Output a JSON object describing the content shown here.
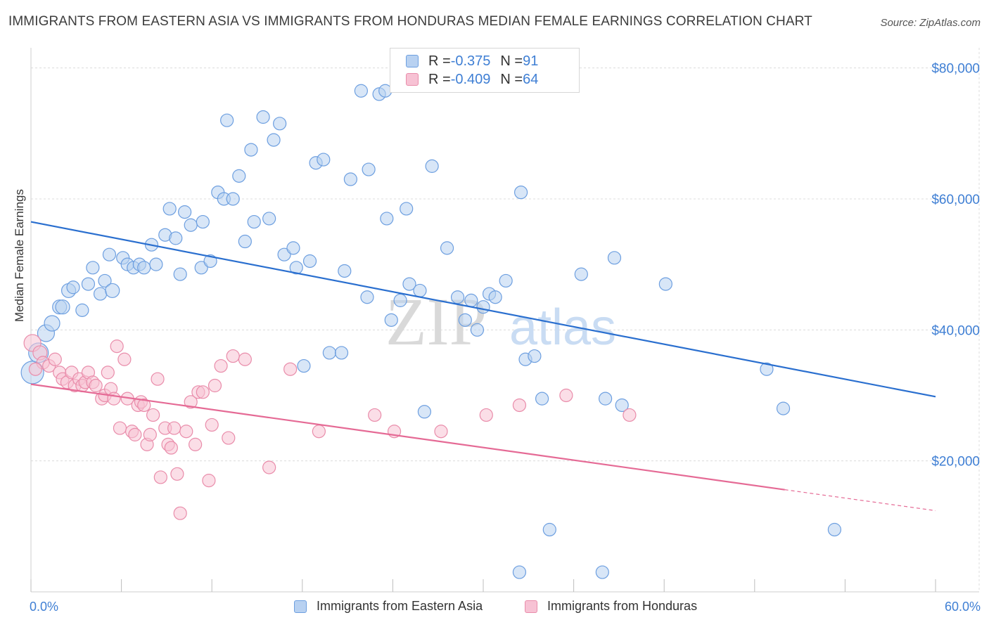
{
  "header": {
    "title": "IMMIGRANTS FROM EASTERN ASIA VS IMMIGRANTS FROM HONDURAS MEDIAN FEMALE EARNINGS CORRELATION CHART",
    "source": "Source: ZipAtlas.com"
  },
  "watermark": {
    "zip": "ZIP",
    "atlas": "atlas"
  },
  "legend_top": {
    "rows": [
      {
        "r_label": "R = ",
        "r_value": "-0.375",
        "n_label": "N = ",
        "n_value": "91"
      },
      {
        "r_label": "R = ",
        "r_value": "-0.409",
        "n_label": "N = ",
        "n_value": "64"
      }
    ]
  },
  "legend_bottom": {
    "items": [
      {
        "label": "Immigrants from Eastern Asia"
      },
      {
        "label": "Immigrants from Honduras"
      }
    ]
  },
  "colors": {
    "blue_fill": "#b8d1f1",
    "blue_stroke": "#6d9fe0",
    "blue_line": "#2a6fcf",
    "pink_fill": "#f7c2d4",
    "pink_stroke": "#e98caa",
    "pink_line": "#e56a95",
    "grid": "#dcdcdc",
    "axis_text": "#3f7fd4"
  },
  "chart_data": {
    "type": "scatter",
    "title": "IMMIGRANTS FROM EASTERN ASIA VS IMMIGRANTS FROM HONDURAS MEDIAN FEMALE EARNINGS CORRELATION CHART",
    "xlabel": "",
    "ylabel": "Median Female Earnings",
    "xlim": [
      0,
      60
    ],
    "ylim": [
      0,
      82000
    ],
    "x_tick_labels": [
      "0.0%",
      "60.0%"
    ],
    "y_ticks": [
      20000,
      40000,
      60000,
      80000
    ],
    "y_tick_labels": [
      "$20,000",
      "$40,000",
      "$60,000",
      "$80,000"
    ],
    "grid": true,
    "legend_position": "top-center",
    "series": [
      {
        "name": "Immigrants from Eastern Asia",
        "color": "#6d9fe0",
        "trend": {
          "x": [
            0,
            60
          ],
          "y": [
            56500,
            29800
          ]
        },
        "points": [
          [
            0.1,
            33500,
            16
          ],
          [
            0.5,
            36500,
            14
          ],
          [
            1.0,
            39500,
            12
          ],
          [
            1.4,
            41000,
            11
          ],
          [
            1.9,
            43500,
            10
          ],
          [
            2.1,
            43500,
            10
          ],
          [
            2.5,
            46000,
            10
          ],
          [
            2.8,
            46500,
            9
          ],
          [
            3.4,
            43000,
            9
          ],
          [
            3.8,
            47000,
            9
          ],
          [
            4.1,
            49500,
            9
          ],
          [
            4.6,
            45500,
            9
          ],
          [
            4.9,
            47500,
            9
          ],
          [
            5.4,
            46000,
            10
          ],
          [
            5.2,
            51500,
            9
          ],
          [
            6.1,
            51000,
            9
          ],
          [
            6.4,
            50000,
            9
          ],
          [
            6.8,
            49500,
            9
          ],
          [
            7.2,
            50000,
            9
          ],
          [
            7.5,
            49500,
            9
          ],
          [
            8.3,
            50000,
            9
          ],
          [
            8.0,
            53000,
            9
          ],
          [
            8.9,
            54500,
            9
          ],
          [
            9.2,
            58500,
            9
          ],
          [
            9.6,
            54000,
            9
          ],
          [
            9.9,
            48500,
            9
          ],
          [
            10.2,
            58000,
            9
          ],
          [
            10.6,
            56000,
            9
          ],
          [
            11.3,
            49500,
            9
          ],
          [
            11.4,
            56500,
            9
          ],
          [
            11.9,
            50500,
            9
          ],
          [
            12.4,
            61000,
            9
          ],
          [
            12.8,
            60000,
            9
          ],
          [
            13.0,
            72000,
            9
          ],
          [
            13.4,
            60000,
            9
          ],
          [
            13.8,
            63500,
            9
          ],
          [
            14.2,
            53500,
            9
          ],
          [
            14.6,
            67500,
            9
          ],
          [
            14.8,
            56500,
            9
          ],
          [
            15.4,
            72500,
            9
          ],
          [
            15.8,
            57000,
            9
          ],
          [
            16.1,
            69000,
            9
          ],
          [
            16.5,
            71500,
            9
          ],
          [
            16.8,
            51500,
            9
          ],
          [
            17.4,
            52500,
            9
          ],
          [
            17.6,
            49500,
            9
          ],
          [
            18.1,
            34500,
            9
          ],
          [
            18.5,
            50500,
            9
          ],
          [
            18.9,
            65500,
            9
          ],
          [
            19.4,
            66000,
            9
          ],
          [
            19.8,
            36500,
            9
          ],
          [
            20.6,
            36500,
            9
          ],
          [
            20.8,
            49000,
            9
          ],
          [
            21.2,
            63000,
            9
          ],
          [
            21.9,
            76500,
            9
          ],
          [
            22.3,
            45000,
            9
          ],
          [
            22.4,
            64500,
            9
          ],
          [
            23.1,
            76000,
            9
          ],
          [
            23.5,
            76500,
            9
          ],
          [
            23.6,
            57000,
            9
          ],
          [
            23.9,
            41500,
            9
          ],
          [
            24.5,
            44500,
            9
          ],
          [
            24.9,
            58500,
            9
          ],
          [
            25.1,
            47000,
            9
          ],
          [
            25.8,
            46000,
            9
          ],
          [
            26.1,
            27500,
            9
          ],
          [
            26.6,
            65000,
            9
          ],
          [
            27.6,
            52500,
            9
          ],
          [
            28.3,
            45000,
            9
          ],
          [
            28.8,
            41500,
            9
          ],
          [
            29.2,
            44500,
            9
          ],
          [
            29.6,
            40000,
            9
          ],
          [
            30.0,
            43500,
            9
          ],
          [
            30.4,
            45500,
            9
          ],
          [
            30.8,
            45000,
            9
          ],
          [
            31.5,
            47500,
            9
          ],
          [
            32.4,
            3000,
            9
          ],
          [
            32.5,
            61000,
            9
          ],
          [
            32.8,
            35500,
            9
          ],
          [
            33.4,
            36000,
            9
          ],
          [
            33.9,
            29500,
            9
          ],
          [
            34.4,
            9500,
            9
          ],
          [
            36.5,
            48500,
            9
          ],
          [
            37.9,
            3000,
            9
          ],
          [
            38.1,
            29500,
            9
          ],
          [
            38.7,
            51000,
            9
          ],
          [
            39.2,
            28500,
            9
          ],
          [
            42.1,
            47000,
            9
          ],
          [
            48.8,
            34000,
            9
          ],
          [
            49.9,
            28000,
            9
          ],
          [
            53.3,
            9500,
            9
          ]
        ]
      },
      {
        "name": "Immigrants from Honduras",
        "color": "#e98caa",
        "trend": {
          "x": [
            0,
            50
          ],
          "y": [
            31700,
            15600
          ]
        },
        "trend_dashed": {
          "x": [
            50,
            60
          ],
          "y": [
            15600,
            12400
          ]
        },
        "points": [
          [
            0.1,
            38000,
            12
          ],
          [
            0.6,
            36500,
            10
          ],
          [
            0.8,
            35000,
            9
          ],
          [
            1.2,
            34500,
            9
          ],
          [
            1.6,
            35500,
            9
          ],
          [
            1.9,
            33500,
            9
          ],
          [
            2.1,
            32500,
            9
          ],
          [
            2.4,
            32000,
            9
          ],
          [
            2.7,
            33500,
            9
          ],
          [
            2.9,
            31500,
            9
          ],
          [
            3.2,
            32500,
            9
          ],
          [
            3.4,
            31500,
            9
          ],
          [
            3.6,
            32000,
            9
          ],
          [
            3.8,
            33500,
            9
          ],
          [
            4.1,
            32000,
            9
          ],
          [
            4.3,
            31500,
            9
          ],
          [
            4.7,
            29500,
            9
          ],
          [
            4.9,
            30000,
            9
          ],
          [
            5.1,
            33500,
            9
          ],
          [
            5.3,
            31000,
            9
          ],
          [
            5.5,
            29500,
            9
          ],
          [
            5.7,
            37500,
            9
          ],
          [
            5.9,
            25000,
            9
          ],
          [
            6.2,
            35500,
            9
          ],
          [
            6.4,
            29500,
            9
          ],
          [
            6.7,
            24500,
            9
          ],
          [
            6.9,
            24000,
            9
          ],
          [
            7.1,
            28500,
            9
          ],
          [
            7.3,
            29000,
            9
          ],
          [
            7.5,
            28500,
            9
          ],
          [
            7.7,
            22500,
            9
          ],
          [
            7.9,
            24000,
            9
          ],
          [
            8.1,
            27000,
            9
          ],
          [
            8.4,
            32500,
            9
          ],
          [
            8.6,
            17500,
            9
          ],
          [
            8.9,
            25000,
            9
          ],
          [
            9.1,
            22500,
            9
          ],
          [
            9.3,
            22000,
            9
          ],
          [
            9.5,
            25000,
            9
          ],
          [
            9.7,
            18000,
            9
          ],
          [
            9.9,
            12000,
            9
          ],
          [
            10.3,
            24500,
            9
          ],
          [
            10.6,
            29000,
            9
          ],
          [
            10.9,
            22500,
            9
          ],
          [
            11.1,
            30500,
            9
          ],
          [
            11.4,
            30500,
            9
          ],
          [
            11.8,
            17000,
            9
          ],
          [
            12.0,
            25500,
            9
          ],
          [
            12.2,
            31500,
            9
          ],
          [
            12.6,
            34500,
            9
          ],
          [
            13.1,
            23500,
            9
          ],
          [
            13.4,
            36000,
            9
          ],
          [
            14.2,
            35500,
            9
          ],
          [
            15.8,
            19000,
            9
          ],
          [
            17.2,
            34000,
            9
          ],
          [
            19.1,
            24500,
            9
          ],
          [
            22.8,
            27000,
            9
          ],
          [
            24.1,
            24500,
            9
          ],
          [
            27.2,
            24500,
            9
          ],
          [
            30.2,
            27000,
            9
          ],
          [
            32.4,
            28500,
            9
          ],
          [
            35.5,
            30000,
            9
          ],
          [
            39.7,
            27000,
            9
          ],
          [
            0.3,
            34000,
            9
          ]
        ]
      }
    ]
  }
}
